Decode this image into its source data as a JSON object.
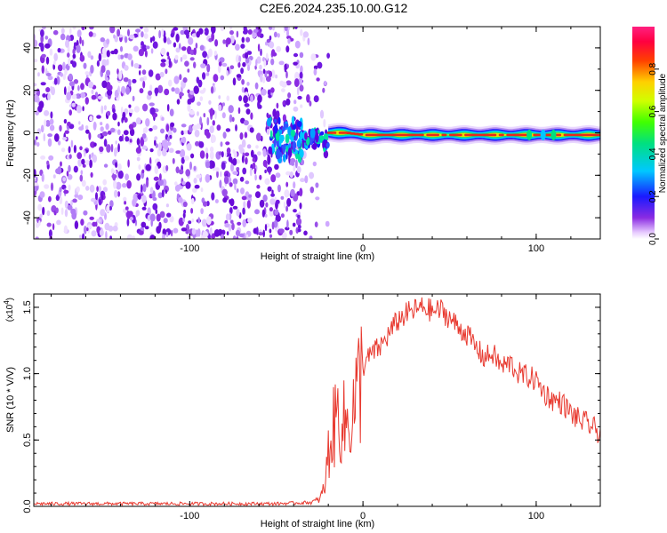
{
  "figure": {
    "title": "C2E6.2024.235.10.00.G12"
  },
  "chart_data": [
    {
      "type": "heatmap",
      "xlabel": "Height of straight line (km)",
      "ylabel": "Frequency (Hz)",
      "xlim": [
        -190,
        137
      ],
      "ylim": [
        -50,
        50
      ],
      "x_ticks": [
        "-100",
        "0",
        "100"
      ],
      "x_tick_values": [
        -100,
        0,
        100
      ],
      "y_ticks": [
        "-40",
        "-20",
        "0",
        "20",
        "40"
      ],
      "y_tick_values": [
        -40,
        -20,
        0,
        20,
        40
      ],
      "colorbar": {
        "label": "Normalized spectral amplitude",
        "ticks": [
          "0.0",
          "0.2",
          "0.4",
          "0.6",
          "0.8"
        ],
        "tick_values": [
          0.0,
          0.2,
          0.4,
          0.6,
          0.8
        ],
        "range": [
          0,
          1
        ]
      },
      "features": {
        "noise_region_x": [
          -190,
          -35
        ],
        "transition_x": [
          -55,
          -20
        ],
        "line_x": [
          -20,
          137
        ],
        "line_frequency_approx": [
          {
            "x": -20,
            "y": 0
          },
          {
            "x": -10,
            "y": 0
          },
          {
            "x": 0,
            "y": -1
          },
          {
            "x": 50,
            "y": -1
          },
          {
            "x": 100,
            "y": -1
          },
          {
            "x": 137,
            "y": -1
          }
        ]
      }
    },
    {
      "type": "line",
      "xlabel": "Height of straight line (km)",
      "ylabel": "SNR (10 * V/V)",
      "y_multiplier": "(x10",
      "y_multiplier_exp": "4",
      "xlim": [
        -190,
        137
      ],
      "ylim": [
        0,
        1.6
      ],
      "x_ticks": [
        "-100",
        "0",
        "100"
      ],
      "x_tick_values": [
        -100,
        0,
        100
      ],
      "y_ticks": [
        "0.0",
        "0.5",
        "1.0",
        "1.5"
      ],
      "y_tick_values": [
        0,
        0.5,
        1.0,
        1.5
      ],
      "series": [
        {
          "color": "#e8392f",
          "x": [
            -190,
            -150,
            -100,
            -50,
            -30,
            -25,
            -22,
            -20,
            -15,
            -10,
            -5,
            0,
            5,
            10,
            15,
            20,
            25,
            30,
            35,
            40,
            45,
            50,
            55,
            60,
            65,
            70,
            75,
            80,
            85,
            90,
            95,
            100,
            105,
            110,
            115,
            120,
            125,
            130,
            137
          ],
          "y": [
            0.02,
            0.02,
            0.02,
            0.02,
            0.03,
            0.05,
            0.15,
            0.4,
            0.7,
            0.6,
            0.75,
            1.05,
            1.15,
            1.2,
            1.3,
            1.4,
            1.45,
            1.48,
            1.5,
            1.47,
            1.48,
            1.42,
            1.35,
            1.3,
            1.2,
            1.12,
            1.15,
            1.05,
            1.08,
            1.0,
            0.98,
            0.95,
            0.85,
            0.8,
            0.78,
            0.7,
            0.65,
            0.62,
            0.55
          ]
        }
      ]
    }
  ]
}
